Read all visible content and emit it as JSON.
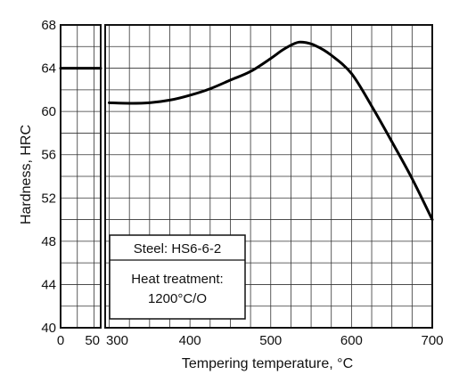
{
  "chart_data": {
    "type": "line",
    "xlabel": "Tempering temperature, °C",
    "ylabel": "Hardness, HRC",
    "ylim": [
      40,
      68
    ],
    "y_ticks": [
      "40",
      "44",
      "48",
      "52",
      "56",
      "60",
      "64",
      "68"
    ],
    "grid": true,
    "panels": [
      {
        "id": "as-hardened",
        "xlim": [
          0,
          60
        ],
        "x_ticks": [
          "0",
          "50"
        ],
        "series": [
          {
            "x": [
              0,
              60
            ],
            "y": [
              64,
              64
            ]
          }
        ]
      },
      {
        "id": "tempering",
        "xlim": [
          295,
          700
        ],
        "x_ticks": [
          "300",
          "400",
          "500",
          "600",
          "700"
        ],
        "series": [
          {
            "x": [
              300,
              325,
              350,
              375,
              400,
              425,
              450,
              475,
              500,
              515,
              530,
              540,
              555,
              575,
              600,
              625,
              650,
              675,
              700
            ],
            "y": [
              60.8,
              60.75,
              60.8,
              61.05,
              61.5,
              62.1,
              62.9,
              63.7,
              64.9,
              65.7,
              66.3,
              66.4,
              66.1,
              65.2,
              63.5,
              60.5,
              57.2,
              53.8,
              50.0
            ]
          }
        ]
      }
    ],
    "annotations": {
      "steel": "Steel: HS6-6-2",
      "heat_treatment_line1": "Heat treatment:",
      "heat_treatment_line2": "1200°C/O"
    }
  }
}
